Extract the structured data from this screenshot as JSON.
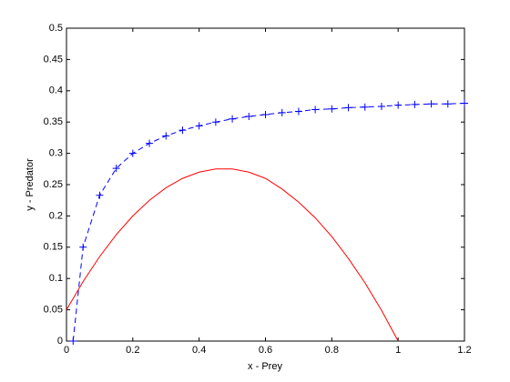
{
  "chart_data": {
    "type": "line",
    "xlabel": "x - Prey",
    "ylabel": "y - Predator",
    "xlim": [
      0,
      1.2
    ],
    "xticks": [
      0,
      0.2,
      0.4,
      0.6,
      0.8,
      1,
      1.2
    ],
    "ylim": [
      0,
      0.5
    ],
    "yticks": [
      0,
      0.05,
      0.1,
      0.15,
      0.2,
      0.25,
      0.3,
      0.35,
      0.4,
      0.45,
      0.5
    ],
    "grid": false,
    "series": [
      {
        "color": "#0000ff",
        "line_style": "dashed",
        "marker": "+",
        "x": [
          0.02,
          0.05,
          0.1,
          0.15,
          0.2,
          0.25,
          0.3,
          0.35,
          0.4,
          0.45,
          0.5,
          0.55,
          0.6,
          0.65,
          0.7,
          0.75,
          0.8,
          0.85,
          0.9,
          0.95,
          1,
          1.05,
          1.1,
          1.15,
          1.2
        ],
        "values": [
          0,
          0.15,
          0.233,
          0.276,
          0.3,
          0.316,
          0.328,
          0.337,
          0.344,
          0.35,
          0.355,
          0.359,
          0.362,
          0.365,
          0.367,
          0.37,
          0.371,
          0.373,
          0.374,
          0.375,
          0.377,
          0.378,
          0.379,
          0.379,
          0.38
        ]
      },
      {
        "color": "#ff0000",
        "line_style": "solid",
        "x": [
          0,
          0.05,
          0.1,
          0.15,
          0.2,
          0.25,
          0.3,
          0.35,
          0.4,
          0.45,
          0.5,
          0.55,
          0.6,
          0.65,
          0.7,
          0.75,
          0.8,
          0.85,
          0.9,
          0.95,
          1
        ],
        "values": [
          0.05,
          0.095,
          0.135,
          0.17,
          0.2,
          0.225,
          0.245,
          0.26,
          0.27,
          0.275,
          0.275,
          0.27,
          0.26,
          0.243,
          0.222,
          0.197,
          0.167,
          0.132,
          0.093,
          0.049,
          0
        ]
      }
    ]
  }
}
